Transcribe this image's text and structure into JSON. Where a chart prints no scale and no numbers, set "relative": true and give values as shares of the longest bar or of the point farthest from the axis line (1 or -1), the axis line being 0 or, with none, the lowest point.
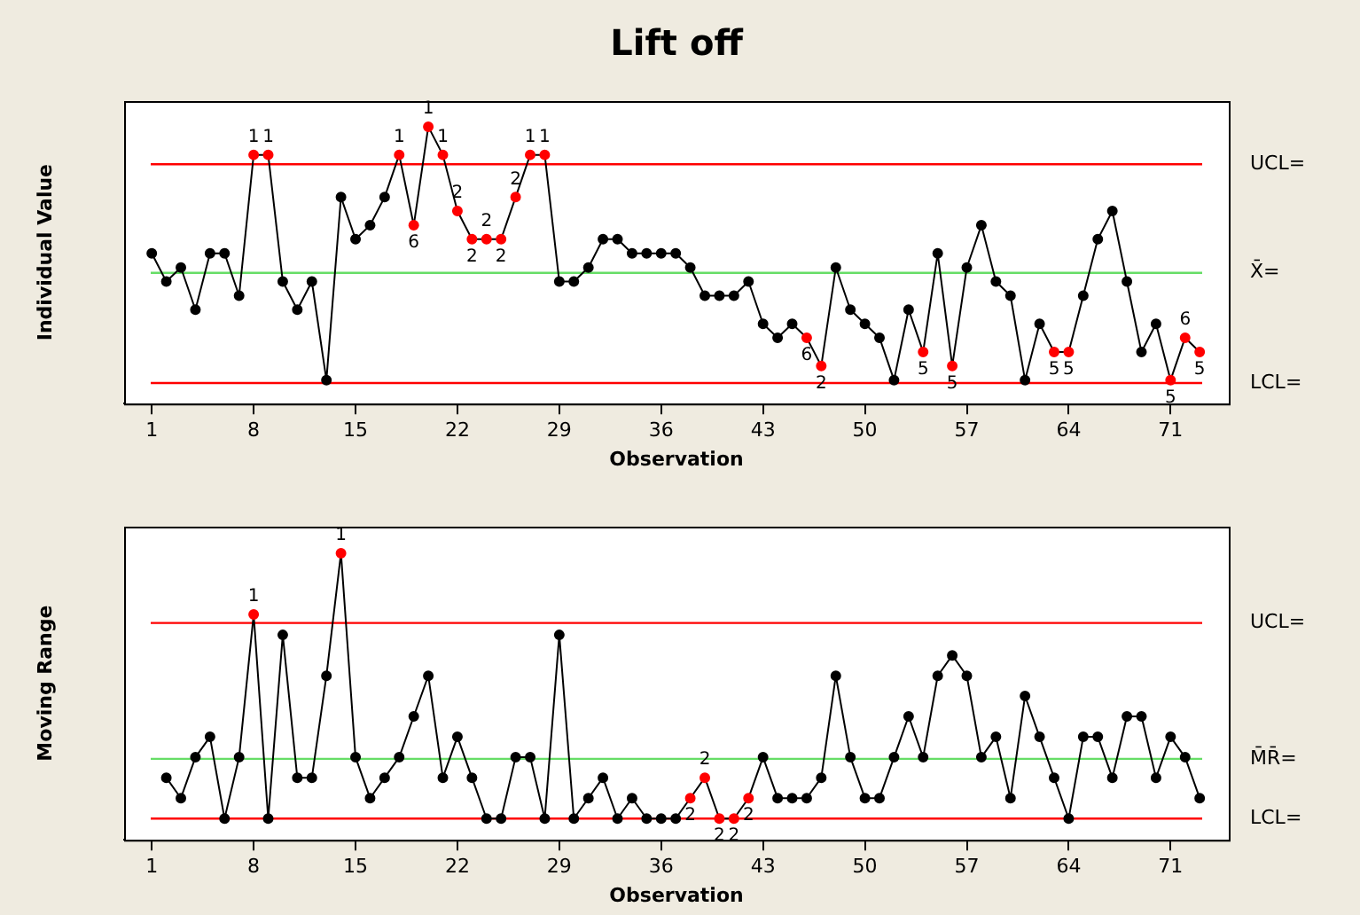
{
  "chart_data": [
    {
      "type": "line",
      "title": "Lift off",
      "ylabel": "Individual Value",
      "xlabel": "Observation",
      "relative": true,
      "x": [
        1,
        2,
        3,
        4,
        5,
        6,
        7,
        8,
        9,
        10,
        11,
        12,
        13,
        14,
        15,
        16,
        17,
        18,
        19,
        20,
        21,
        22,
        23,
        24,
        25,
        26,
        27,
        28,
        29,
        30,
        31,
        32,
        33,
        34,
        35,
        36,
        37,
        38,
        39,
        40,
        41,
        42,
        43,
        44,
        45,
        46,
        47,
        48,
        49,
        50,
        51,
        52,
        53,
        54,
        55,
        56,
        57,
        58,
        59,
        60,
        61,
        62,
        63,
        64,
        65,
        66,
        67,
        68,
        69,
        70,
        71,
        72,
        73
      ],
      "values": [
        0.5,
        0.389,
        0.444,
        0.278,
        0.5,
        0.5,
        0.333,
        0.889,
        0.889,
        0.389,
        0.278,
        0.389,
        0,
        0.722,
        0.556,
        0.611,
        0.722,
        0.889,
        0.611,
        1,
        0.889,
        0.667,
        0.556,
        0.556,
        0.556,
        0.722,
        0.889,
        0.889,
        0.389,
        0.389,
        0.444,
        0.556,
        0.556,
        0.5,
        0.5,
        0.5,
        0.5,
        0.444,
        0.333,
        0.333,
        0.333,
        0.389,
        0.222,
        0.167,
        0.222,
        0.167,
        0.056,
        0.444,
        0.278,
        0.222,
        0.167,
        0,
        0.278,
        0.111,
        0.5,
        0.056,
        0.444,
        0.611,
        0.389,
        0.333,
        0,
        0.222,
        0.111,
        0.111,
        0.333,
        0.556,
        0.667,
        0.389,
        0.111,
        0.222,
        0,
        0.167,
        0.111
      ],
      "color": "#000000",
      "colors": [
        "#000000",
        "#000000",
        "#000000",
        "#000000",
        "#000000",
        "#000000",
        "#000000",
        "#ff0000",
        "#ff0000",
        "#000000",
        "#000000",
        "#000000",
        "#000000",
        "#000000",
        "#000000",
        "#000000",
        "#000000",
        "#ff0000",
        "#ff0000",
        "#ff0000",
        "#ff0000",
        "#ff0000",
        "#ff0000",
        "#ff0000",
        "#ff0000",
        "#ff0000",
        "#ff0000",
        "#ff0000",
        "#000000",
        "#000000",
        "#000000",
        "#000000",
        "#000000",
        "#000000",
        "#000000",
        "#000000",
        "#000000",
        "#000000",
        "#000000",
        "#000000",
        "#000000",
        "#000000",
        "#000000",
        "#000000",
        "#000000",
        "#ff0000",
        "#ff0000",
        "#000000",
        "#000000",
        "#000000",
        "#000000",
        "#000000",
        "#000000",
        "#ff0000",
        "#000000",
        "#ff0000",
        "#000000",
        "#000000",
        "#000000",
        "#000000",
        "#000000",
        "#000000",
        "#ff0000",
        "#ff0000",
        "#000000",
        "#000000",
        "#000000",
        "#000000",
        "#000000",
        "#000000",
        "#ff0000",
        "#ff0000",
        "#ff0000"
      ],
      "marker": "circle",
      "xlim": [
        -0.9,
        75
      ],
      "xticks": [
        1,
        8,
        15,
        22,
        29,
        36,
        43,
        50,
        57,
        64,
        71
      ],
      "ref_lines": [
        {
          "axis": "y",
          "value": 0.852,
          "label": "UCL=",
          "color": "#ff0000"
        },
        {
          "axis": "y",
          "value": 0.423,
          "label": "X̄=",
          "color": "#66dd66"
        },
        {
          "axis": "y",
          "value": -0.012,
          "label": "LCL=",
          "color": "#ff0000"
        }
      ],
      "annotations": [
        {
          "text": "1",
          "x": 8,
          "y": 0.889
        },
        {
          "text": "1",
          "x": 9,
          "y": 0.889
        },
        {
          "text": "1",
          "x": 18,
          "y": 0.889
        },
        {
          "text": "6",
          "x": 19,
          "y": 0.611
        },
        {
          "text": "1",
          "x": 20,
          "y": 1
        },
        {
          "text": "1",
          "x": 21,
          "y": 0.889
        },
        {
          "text": "2",
          "x": 22,
          "y": 0.667
        },
        {
          "text": "2",
          "x": 23,
          "y": 0.556
        },
        {
          "text": "2",
          "x": 24,
          "y": 0.556
        },
        {
          "text": "2",
          "x": 25,
          "y": 0.556
        },
        {
          "text": "2",
          "x": 26,
          "y": 0.722
        },
        {
          "text": "1",
          "x": 27,
          "y": 0.889
        },
        {
          "text": "1",
          "x": 28,
          "y": 0.889
        },
        {
          "text": "6",
          "x": 46,
          "y": 0.167
        },
        {
          "text": "2",
          "x": 47,
          "y": 0.056
        },
        {
          "text": "5",
          "x": 54,
          "y": 0.111
        },
        {
          "text": "5",
          "x": 56,
          "y": 0.056
        },
        {
          "text": "5",
          "x": 63,
          "y": 0.111
        },
        {
          "text": "5",
          "x": 64,
          "y": 0.111
        },
        {
          "text": "5",
          "x": 71,
          "y": 0
        },
        {
          "text": "6",
          "x": 72,
          "y": 0.167
        },
        {
          "text": "5",
          "x": 73,
          "y": 0.111
        }
      ]
    },
    {
      "type": "line",
      "ylabel": "Moving Range",
      "xlabel": "Observation",
      "relative": true,
      "x": [
        2,
        3,
        4,
        5,
        6,
        7,
        8,
        9,
        10,
        11,
        12,
        13,
        14,
        15,
        16,
        17,
        18,
        19,
        20,
        21,
        22,
        23,
        24,
        25,
        26,
        27,
        28,
        29,
        30,
        31,
        32,
        33,
        34,
        35,
        36,
        37,
        38,
        39,
        40,
        41,
        42,
        43,
        44,
        45,
        46,
        47,
        48,
        49,
        50,
        51,
        52,
        53,
        54,
        55,
        56,
        57,
        58,
        59,
        60,
        61,
        62,
        63,
        64,
        65,
        66,
        67,
        68,
        69,
        70,
        71,
        72,
        73
      ],
      "values": [
        0.154,
        0.077,
        0.231,
        0.308,
        0,
        0.231,
        0.769,
        0,
        0.692,
        0.154,
        0.154,
        0.538,
        1,
        0.231,
        0.077,
        0.154,
        0.231,
        0.385,
        0.538,
        0.154,
        0.308,
        0.154,
        0,
        0,
        0.231,
        0.231,
        0,
        0.692,
        0,
        0.077,
        0.154,
        0,
        0.077,
        0,
        0,
        0,
        0.077,
        0.154,
        0,
        0,
        0.077,
        0.231,
        0.077,
        0.077,
        0.077,
        0.154,
        0.538,
        0.231,
        0.077,
        0.077,
        0.231,
        0.385,
        0.231,
        0.538,
        0.615,
        0.538,
        0.231,
        0.308,
        0.077,
        0.462,
        0.308,
        0.154,
        0,
        0.308,
        0.308,
        0.154,
        0.385,
        0.385,
        0.154,
        0.308,
        0.231,
        0.077
      ],
      "color": "#000000",
      "colors": [
        "#000000",
        "#000000",
        "#000000",
        "#000000",
        "#000000",
        "#000000",
        "#ff0000",
        "#000000",
        "#000000",
        "#000000",
        "#000000",
        "#000000",
        "#ff0000",
        "#000000",
        "#000000",
        "#000000",
        "#000000",
        "#000000",
        "#000000",
        "#000000",
        "#000000",
        "#000000",
        "#000000",
        "#000000",
        "#000000",
        "#000000",
        "#000000",
        "#000000",
        "#000000",
        "#000000",
        "#000000",
        "#000000",
        "#000000",
        "#000000",
        "#000000",
        "#000000",
        "#ff0000",
        "#ff0000",
        "#ff0000",
        "#ff0000",
        "#ff0000",
        "#000000",
        "#000000",
        "#000000",
        "#000000",
        "#000000",
        "#000000",
        "#000000",
        "#000000",
        "#000000",
        "#000000",
        "#000000",
        "#000000",
        "#000000",
        "#000000",
        "#000000",
        "#000000",
        "#000000",
        "#000000",
        "#000000",
        "#000000",
        "#000000",
        "#000000",
        "#000000",
        "#000000",
        "#000000",
        "#000000",
        "#000000",
        "#000000",
        "#000000",
        "#000000",
        "#000000"
      ],
      "marker": "circle",
      "xlim": [
        -0.9,
        75
      ],
      "xticks": [
        1,
        8,
        15,
        22,
        29,
        36,
        43,
        50,
        57,
        64,
        71
      ],
      "ref_lines": [
        {
          "axis": "y",
          "value": 0.737,
          "label": "UCL=",
          "color": "#ff0000"
        },
        {
          "axis": "y",
          "value": 0.225,
          "label": "M̄R̄=",
          "color": "#66dd66"
        },
        {
          "axis": "y",
          "value": 0,
          "label": "LCL=",
          "color": "#ff0000"
        }
      ],
      "annotations": [
        {
          "text": "1",
          "x": 8,
          "y": 0.769
        },
        {
          "text": "1",
          "x": 14,
          "y": 1
        },
        {
          "text": "2",
          "x": 38,
          "y": 0.077
        },
        {
          "text": "2",
          "x": 39,
          "y": 0.154
        },
        {
          "text": "2",
          "x": 40,
          "y": 0
        },
        {
          "text": "2",
          "x": 41,
          "y": 0
        },
        {
          "text": "2",
          "x": 42,
          "y": 0.077
        }
      ]
    }
  ]
}
